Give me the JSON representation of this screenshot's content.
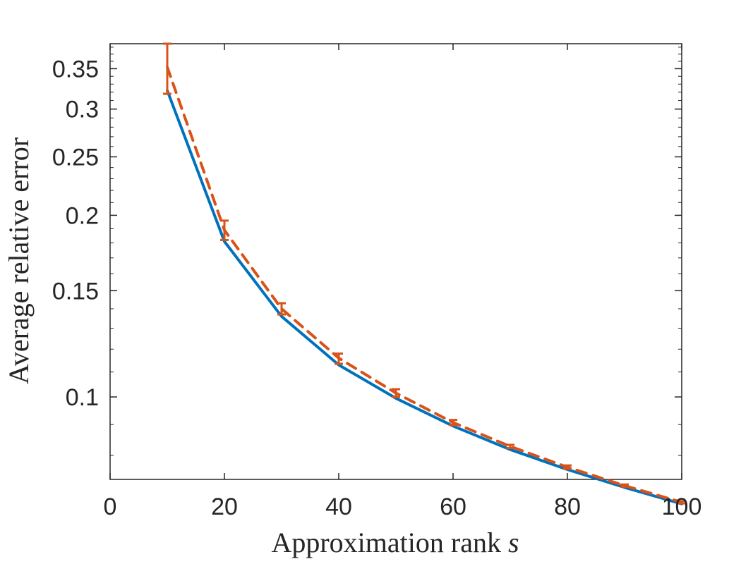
{
  "chart_data": {
    "type": "line",
    "title": "",
    "xlabel": "Approximation rank",
    "xlabel_var": "s",
    "ylabel": "Average relative error",
    "xlim": [
      0,
      100
    ],
    "ylim": [
      0.073,
      0.385
    ],
    "yscale": "log",
    "xticks": [
      0,
      20,
      40,
      60,
      80,
      100
    ],
    "xtick_labels": [
      "0",
      "20",
      "40",
      "60",
      "80",
      "100"
    ],
    "yticks": [
      0.1,
      0.15,
      0.2,
      0.25,
      0.3,
      0.35
    ],
    "ytick_labels": [
      "0.1",
      "0.15",
      "0.2",
      "0.25",
      "0.3",
      "0.35"
    ],
    "grid": false,
    "legend": "none",
    "x": [
      10,
      20,
      30,
      40,
      50,
      60,
      70,
      80,
      90,
      100
    ],
    "series": [
      {
        "color": "#0072BD",
        "style": "solid",
        "values": [
          0.322,
          0.181,
          0.136,
          0.113,
          0.0995,
          0.0895,
          0.0818,
          0.0758,
          0.0708,
          0.0665
        ]
      },
      {
        "color": "#D95319",
        "style": "dashed",
        "values": [
          0.352,
          0.189,
          0.14,
          0.116,
          0.1015,
          0.0907,
          0.0828,
          0.0765,
          0.0713,
          0.0669
        ],
        "error_low": [
          0.318,
          0.182,
          0.137,
          0.1135,
          0.1,
          0.0898,
          0.0823,
          0.076,
          0.071,
          0.0666
        ],
        "error_high": [
          0.385,
          0.196,
          0.143,
          0.118,
          0.103,
          0.0916,
          0.0833,
          0.077,
          0.0716,
          0.0672
        ]
      }
    ]
  }
}
